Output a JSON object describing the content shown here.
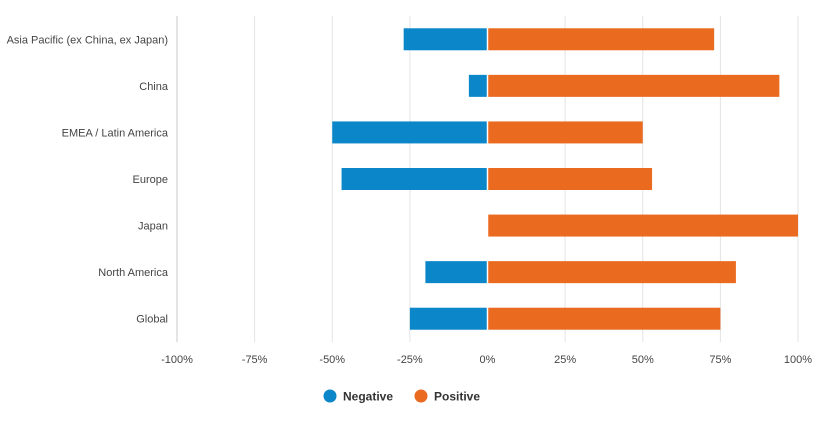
{
  "chart_data": {
    "type": "bar",
    "orientation": "horizontal",
    "stacked": "diverging",
    "categories": [
      "Asia Pacific (ex China, ex Japan)",
      "China",
      "EMEA / Latin America",
      "Europe",
      "Japan",
      "North America",
      "Global"
    ],
    "series": [
      {
        "name": "Negative",
        "color": "#0a86c9",
        "values": [
          -27,
          -6,
          -50,
          -47,
          0,
          -20,
          -25
        ]
      },
      {
        "name": "Positive",
        "color": "#ea6a1f",
        "values": [
          73,
          94,
          50,
          53,
          100,
          80,
          75
        ]
      }
    ],
    "xlim": [
      -100,
      100
    ],
    "x_ticks": [
      -100,
      -75,
      -50,
      -25,
      0,
      25,
      50,
      75,
      100
    ],
    "x_tick_labels": [
      "-100%",
      "-75%",
      "-50%",
      "-25%",
      "0%",
      "25%",
      "50%",
      "75%",
      "100%"
    ],
    "grid": "vertical",
    "legend_position": "bottom-center",
    "title": "",
    "xlabel": "",
    "ylabel": ""
  }
}
